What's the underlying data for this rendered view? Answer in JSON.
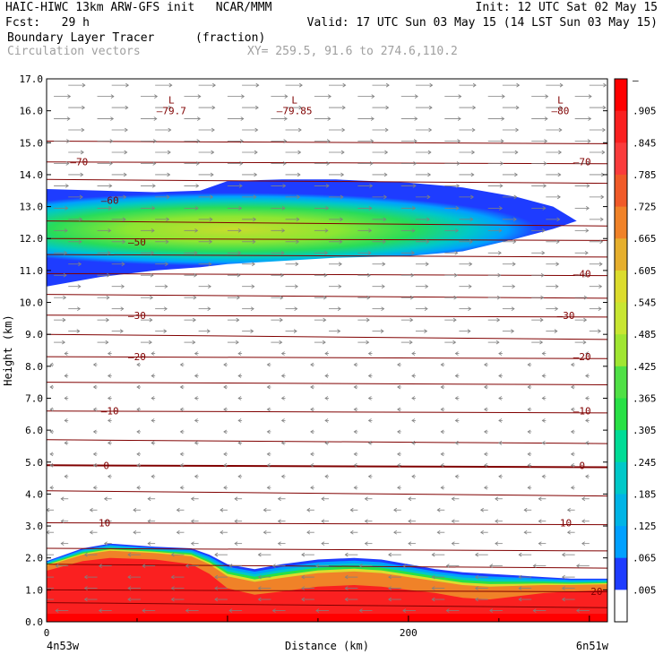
{
  "header": {
    "line1_left": "HAIC-HIWC 13km ARW-GFS init   NCAR/MMM",
    "line1_right": "Init: 12 UTC Sat 02 May 15",
    "line2_left": "Fcst:   29 h",
    "line2_right": "Valid: 17 UTC Sun 03 May 15 (14 LST Sun 03 May 15)",
    "field_name": "Boundary Layer Tracer",
    "field_units": "(fraction)",
    "vector_label": "Circulation vectors",
    "xy_label": "XY= 259.5, 91.6 to 274.6,110.2"
  },
  "colors": {
    "contour": "#800000",
    "vector": "#808080",
    "ramp": [
      "#ffffff",
      "#1e3cff",
      "#00a0ff",
      "#00c8c8",
      "#00dc96",
      "#28e046",
      "#a0e632",
      "#dcdc2d",
      "#e6af2d",
      "#f08228",
      "#fa3c3c",
      "#ff0000"
    ]
  },
  "chart_data": {
    "type": "heatmap",
    "xlabel": "Distance (km)",
    "ylabel": "Height (km)",
    "xlim": [
      0,
      310
    ],
    "ylim": [
      0,
      17
    ],
    "x_ticks": [
      0,
      200
    ],
    "y_ticks": [
      "0.0",
      "1.0",
      "2.0",
      "3.0",
      "4.0",
      "5.0",
      "6.0",
      "7.0",
      "8.0",
      "9.0",
      "10.0",
      "11.0",
      "12.0",
      "13.0",
      "14.0",
      "15.0",
      "16.0",
      "17.0"
    ],
    "start_label": "4n53w",
    "end_label": "6n51w",
    "colorbar_labels": [
      "–",
      ".905",
      ".845",
      ".785",
      ".725",
      ".665",
      ".605",
      ".545",
      ".485",
      ".425",
      ".365",
      ".305",
      ".245",
      ".185",
      ".125",
      ".065",
      ".005"
    ],
    "lower_layer": {
      "x": [
        0,
        20,
        35,
        60,
        80,
        90,
        100,
        115,
        130,
        150,
        170,
        185,
        200,
        215,
        230,
        245,
        260,
        275,
        290,
        310
      ],
      "top": [
        1.9,
        2.3,
        2.45,
        2.35,
        2.3,
        2.1,
        1.8,
        1.65,
        1.8,
        1.95,
        2.0,
        1.95,
        1.8,
        1.65,
        1.55,
        1.5,
        1.45,
        1.4,
        1.35,
        1.35
      ],
      "red_top": [
        1.6,
        1.9,
        2.0,
        1.95,
        1.8,
        1.5,
        1.05,
        0.85,
        0.95,
        1.1,
        1.15,
        1.1,
        1.0,
        0.9,
        0.75,
        0.7,
        0.8,
        0.9,
        0.95,
        1.0
      ]
    },
    "upper_layer": {
      "x": [
        0,
        30,
        60,
        85,
        100,
        130,
        160,
        200,
        230,
        260,
        280,
        293
      ],
      "top": [
        13.55,
        13.5,
        13.45,
        13.5,
        13.8,
        13.85,
        13.85,
        13.75,
        13.6,
        13.3,
        13.0,
        12.55
      ],
      "bottom": [
        10.5,
        10.8,
        11.0,
        11.1,
        11.2,
        11.3,
        11.4,
        11.45,
        11.6,
        12.0,
        12.3,
        12.55
      ],
      "peak_value": 0.44
    },
    "temperature_contours": [
      {
        "label": "–70",
        "height": 14.4
      },
      {
        "label": "–50",
        "height": 12.0
      },
      {
        "label": "–40",
        "height": 10.9
      },
      {
        "label": "–30",
        "height": 9.6
      },
      {
        "label": "–20",
        "height": 8.3
      },
      {
        "label": "–10",
        "height": 6.6
      },
      {
        "label": "0",
        "height": 4.9
      },
      {
        "label": "10",
        "height": 3.1
      },
      {
        "label": "20",
        "height": 1.0
      }
    ],
    "contour_label_points": [
      {
        "text": "–70",
        "x": 18,
        "y": 14.4
      },
      {
        "text": "–70",
        "x": 296,
        "y": 14.4
      },
      {
        "text": "–60",
        "x": 35,
        "y": 13.2
      },
      {
        "text": "–50",
        "x": 50,
        "y": 11.9
      },
      {
        "text": "–40",
        "x": 296,
        "y": 10.9
      },
      {
        "text": "–30",
        "x": 50,
        "y": 9.6
      },
      {
        "text": "–30",
        "x": 287,
        "y": 9.6
      },
      {
        "text": "–20",
        "x": 50,
        "y": 8.3
      },
      {
        "text": "–20",
        "x": 296,
        "y": 8.3
      },
      {
        "text": "–10",
        "x": 35,
        "y": 6.6
      },
      {
        "text": "–10",
        "x": 296,
        "y": 6.6
      },
      {
        "text": "0",
        "x": 33,
        "y": 4.9
      },
      {
        "text": "0",
        "x": 296,
        "y": 4.9
      },
      {
        "text": "10",
        "x": 32,
        "y": 3.1
      },
      {
        "text": "10",
        "x": 287,
        "y": 3.1
      },
      {
        "text": "20",
        "x": 304,
        "y": 0.95
      }
    ],
    "lows": [
      {
        "symbol": "L",
        "value": "–79.7",
        "x": 69,
        "y": 16.0
      },
      {
        "symbol": "L",
        "value": "–79.85",
        "x": 137,
        "y": 16.0
      },
      {
        "symbol": "L",
        "value": "–80",
        "x": 284,
        "y": 16.0
      }
    ]
  }
}
